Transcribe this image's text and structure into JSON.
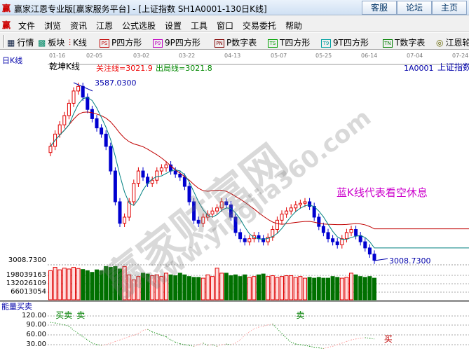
{
  "window": {
    "title": "赢家江恩专业版[赢家服务平台] - [上证指数  SH1A0001-130日K线]",
    "logo": "赢",
    "buttons": [
      "客服",
      "论坛",
      "主页"
    ]
  },
  "menu": [
    "文件",
    "浏览",
    "资讯",
    "江恩",
    "公式选股",
    "设置",
    "工具",
    "窗口",
    "交易委托",
    "帮助"
  ],
  "toolbar": [
    {
      "icon": "grid-icon",
      "label": "行情"
    },
    {
      "icon": "blocks-icon",
      "label": "板块"
    },
    {
      "icon": "candles-icon",
      "label": "K线"
    },
    {
      "icon": "PS",
      "label": "P四方形",
      "color": "#c00000"
    },
    {
      "icon": "P9",
      "label": "9P四方形",
      "color": "#c000c0"
    },
    {
      "icon": "PN",
      "label": "P数字表",
      "color": "#800000"
    },
    {
      "icon": "TS",
      "label": "T四方形",
      "color": "#00a000"
    },
    {
      "icon": "T9",
      "label": "9T四方形",
      "color": "#00a0a0"
    },
    {
      "icon": "TN",
      "label": "T数字表",
      "color": "#008000"
    },
    {
      "icon": "wheel-icon",
      "label": "江恩轮"
    }
  ],
  "chart": {
    "period_label": "日K线",
    "indicator_name": "乾坤K线",
    "focus_line": "关注线=3021.9",
    "exit_line": "出局线=3021.8",
    "code": "1A0001",
    "name": "上证指数",
    "high_label": "3587.0300",
    "low_label": "3008.7300",
    "axis_low": "3008.7300",
    "dates": [
      "01-16",
      "02-05",
      "03-02",
      "03-22",
      "04-13",
      "05-07",
      "05-25",
      "06-14",
      "07-04",
      "07-24"
    ],
    "annotation": "蓝K线代表看空休息",
    "volume_ticks": [
      "198039163",
      "132026109",
      "66013054"
    ],
    "energy_name": "能量买卖",
    "energy_ticks": [
      "120.00",
      "90.00",
      "60.00",
      "30.00"
    ],
    "signals": [
      {
        "text": "买卖",
        "idx": 2,
        "color": "#008000"
      },
      {
        "text": "卖",
        "idx": 5,
        "color": "#008000"
      },
      {
        "text": "卖",
        "idx": 54,
        "color": "#008000"
      },
      {
        "text": "买",
        "idx": 73,
        "color": "#c00000"
      }
    ],
    "watermark": [
      "赢家财富网",
      "www.yingjia360.com"
    ],
    "colors": {
      "up": "#e00000",
      "down": "#0000d0",
      "ma_long": "#c00000",
      "ma_short": "#008080",
      "vol_down": "#007000"
    }
  },
  "chart_data": {
    "type": "candlestick",
    "ylim": [
      3008.73,
      3587.03
    ],
    "close": [
      3380,
      3420,
      3450,
      3480,
      3520,
      3560,
      3575,
      3540,
      3500,
      3470,
      3440,
      3420,
      3380,
      3300,
      3200,
      3130,
      3150,
      3200,
      3260,
      3300,
      3280,
      3260,
      3270,
      3300,
      3310,
      3320,
      3300,
      3290,
      3280,
      3250,
      3200,
      3140,
      3130,
      3150,
      3160,
      3170,
      3180,
      3200,
      3190,
      3150,
      3100,
      3080,
      3070,
      3080,
      3090,
      3080,
      3070,
      3085,
      3110,
      3140,
      3160,
      3170,
      3180,
      3190,
      3195,
      3200,
      3185,
      3150,
      3120,
      3100,
      3080,
      3070,
      3060,
      3080,
      3100,
      3110,
      3090,
      3070,
      3050,
      3030,
      3010
    ],
    "volume": [
      175000000.0,
      195000000.0,
      180000000.0,
      190000000.0,
      185000000.0,
      195000000.0,
      188000000.0,
      182000000.0,
      175000000.0,
      165000000.0,
      180000000.0,
      175000000.0,
      200000000.0,
      195000000.0,
      200000000.0,
      185000000.0,
      200000000.0,
      150000000.0,
      120000000.0,
      140000000.0,
      160000000.0,
      155000000.0,
      145000000.0,
      150000000.0,
      140000000.0,
      160000000.0,
      150000000.0,
      145000000.0,
      160000000.0,
      150000000.0,
      140000000.0,
      135000000.0,
      135000000.0,
      130000000.0,
      150000000.0,
      140000000.0,
      190000000.0,
      160000000.0,
      160000000.0,
      145000000.0,
      150000000.0,
      140000000.0,
      150000000.0,
      135000000.0,
      140000000.0,
      150000000.0,
      155000000.0,
      140000000.0,
      145000000.0,
      135000000.0,
      140000000.0,
      145000000.0,
      145000000.0,
      135000000.0,
      140000000.0,
      130000000.0,
      135000000.0,
      130000000.0,
      135000000.0,
      130000000.0,
      130000000.0,
      140000000.0,
      135000000.0,
      130000000.0,
      135000000.0,
      160000000.0,
      150000000.0,
      140000000.0,
      135000000.0,
      140000000.0,
      130000000.0
    ],
    "energy": [
      100,
      98,
      95,
      92,
      88,
      75,
      65,
      55,
      45,
      35,
      30,
      28,
      30,
      35,
      40,
      45,
      50,
      55,
      60,
      65,
      75,
      78,
      70,
      65,
      60,
      55,
      45,
      38,
      33,
      30,
      28,
      25,
      30,
      35,
      28,
      30,
      25,
      30,
      32,
      30,
      35,
      45,
      60,
      70,
      80,
      85,
      88,
      92,
      95,
      80,
      65,
      50,
      38,
      32,
      30,
      28,
      25,
      22,
      20,
      18,
      22,
      25,
      30,
      35,
      40,
      45,
      48,
      50,
      52,
      50,
      48
    ]
  }
}
